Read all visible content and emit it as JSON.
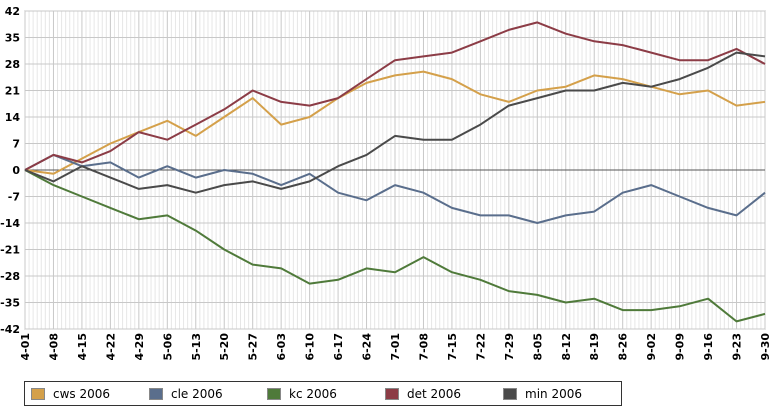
{
  "chart_data": {
    "type": "line",
    "title": "",
    "xlabel": "",
    "ylabel": "",
    "ylim": [
      -42,
      42
    ],
    "yticks": [
      42,
      35,
      28,
      21,
      14,
      7,
      0,
      -7,
      -14,
      -21,
      -28,
      -35,
      -42
    ],
    "x_tick_labels": [
      "4-01",
      "4-08",
      "4-15",
      "4-22",
      "4-29",
      "5-06",
      "5-13",
      "5-20",
      "5-27",
      "6-03",
      "6-10",
      "6-17",
      "6-24",
      "7-01",
      "7-08",
      "7-15",
      "7-22",
      "7-29",
      "8-05",
      "8-12",
      "8-19",
      "8-26",
      "9-02",
      "9-09",
      "9-16",
      "9-23",
      "9-30"
    ],
    "grid": true,
    "legend_position": "bottom",
    "x": [
      "4-01",
      "4-08",
      "4-15",
      "4-22",
      "4-29",
      "5-06",
      "5-13",
      "5-20",
      "5-27",
      "6-03",
      "6-10",
      "6-17",
      "6-24",
      "7-01",
      "7-08",
      "7-15",
      "7-22",
      "7-29",
      "8-05",
      "8-12",
      "8-19",
      "8-26",
      "9-02",
      "9-09",
      "9-16",
      "9-23",
      "9-30"
    ],
    "series": [
      {
        "name": "cws 2006",
        "color": "#d4a04a",
        "values": [
          0,
          -1,
          3,
          7,
          10,
          13,
          9,
          14,
          19,
          12,
          14,
          19,
          23,
          25,
          26,
          24,
          20,
          18,
          21,
          22,
          25,
          24,
          22,
          20,
          21,
          17,
          18
        ]
      },
      {
        "name": "cle 2006",
        "color": "#5a6e8c",
        "values": [
          0,
          4,
          1,
          2,
          -2,
          1,
          -2,
          0,
          -1,
          -4,
          -1,
          -6,
          -8,
          -4,
          -6,
          -10,
          -12,
          -12,
          -14,
          -12,
          -11,
          -6,
          -4,
          -7,
          -10,
          -12,
          -6
        ]
      },
      {
        "name": "kc 2006",
        "color": "#4f7a3a",
        "values": [
          0,
          -4,
          -7,
          -10,
          -13,
          -12,
          -16,
          -21,
          -25,
          -26,
          -30,
          -29,
          -26,
          -27,
          -23,
          -27,
          -29,
          -32,
          -33,
          -35,
          -34,
          -37,
          -37,
          -36,
          -34,
          -40,
          -38
        ]
      },
      {
        "name": "det 2006",
        "color": "#8c3c46",
        "values": [
          0,
          4,
          2,
          5,
          10,
          8,
          12,
          16,
          21,
          18,
          17,
          19,
          24,
          29,
          30,
          31,
          34,
          37,
          39,
          36,
          34,
          33,
          31,
          29,
          29,
          32,
          28
        ]
      },
      {
        "name": "min 2006",
        "color": "#4a4a4a",
        "values": [
          0,
          -3,
          1,
          -2,
          -5,
          -4,
          -6,
          -4,
          -3,
          -5,
          -3,
          1,
          4,
          9,
          8,
          8,
          12,
          17,
          19,
          21,
          21,
          23,
          22,
          24,
          27,
          31,
          30
        ]
      }
    ]
  }
}
